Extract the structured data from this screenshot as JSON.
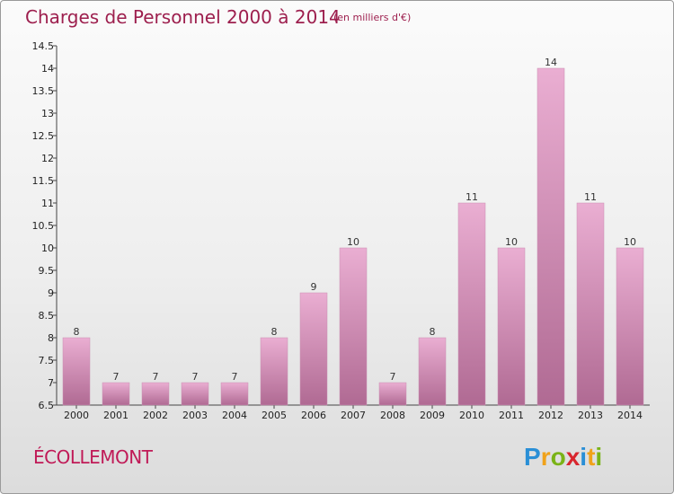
{
  "header": {
    "title": "Charges de Personnel 2000 à 2014",
    "subtitle": "(en milliers d'€)"
  },
  "footer": {
    "commune": "ÉCOLLEMONT",
    "logo_text": "Proxiti"
  },
  "colors": {
    "title": "#9d1f4e",
    "commune": "#c01a57",
    "bar_light": "#eaaed2",
    "bar_dark": "#b06a93"
  },
  "chart_data": {
    "type": "bar",
    "title": "Charges de Personnel 2000 à 2014",
    "subtitle": "(en milliers d'€)",
    "categories": [
      "2000",
      "2001",
      "2002",
      "2003",
      "2004",
      "2005",
      "2006",
      "2007",
      "2008",
      "2009",
      "2010",
      "2011",
      "2012",
      "2013",
      "2014"
    ],
    "values": [
      8,
      7,
      7,
      7,
      7,
      8,
      9,
      10,
      7,
      8,
      11,
      10,
      14,
      11,
      10
    ],
    "ylim": [
      6.5,
      14.5
    ],
    "yticks": [
      6.5,
      7,
      7.5,
      8,
      8.5,
      9,
      9.5,
      10,
      10.5,
      11,
      11.5,
      12,
      12.5,
      13,
      13.5,
      14,
      14.5
    ],
    "grid": false,
    "legend": "none"
  }
}
